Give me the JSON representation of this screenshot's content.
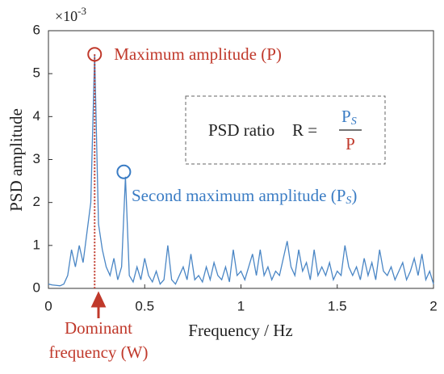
{
  "chart_data": {
    "type": "line",
    "xlabel": "Frequency / Hz",
    "ylabel": "PSD amplitude",
    "multiplier": {
      "base": "×10",
      "exponent": "-3"
    },
    "xlim": [
      0,
      2
    ],
    "xticks": [
      0,
      0.5,
      1,
      1.5,
      2
    ],
    "ylim": [
      0,
      6
    ],
    "yticks": [
      0,
      1,
      2,
      3,
      4,
      5,
      6
    ],
    "grid": false,
    "series": [
      {
        "color": "#4a86c5",
        "x": [
          0,
          0.02,
          0.04,
          0.06,
          0.08,
          0.1,
          0.12,
          0.14,
          0.16,
          0.18,
          0.2,
          0.22,
          0.24,
          0.26,
          0.28,
          0.3,
          0.32,
          0.34,
          0.36,
          0.38,
          0.4,
          0.42,
          0.44,
          0.46,
          0.48,
          0.5,
          0.52,
          0.54,
          0.56,
          0.58,
          0.6,
          0.62,
          0.64,
          0.66,
          0.68,
          0.7,
          0.72,
          0.74,
          0.76,
          0.78,
          0.8,
          0.82,
          0.84,
          0.86,
          0.88,
          0.9,
          0.92,
          0.94,
          0.96,
          0.98,
          1,
          1.02,
          1.04,
          1.06,
          1.08,
          1.1,
          1.12,
          1.14,
          1.16,
          1.18,
          1.2,
          1.22,
          1.24,
          1.26,
          1.28,
          1.3,
          1.32,
          1.34,
          1.36,
          1.38,
          1.4,
          1.42,
          1.44,
          1.46,
          1.48,
          1.5,
          1.52,
          1.54,
          1.56,
          1.58,
          1.6,
          1.62,
          1.64,
          1.66,
          1.68,
          1.7,
          1.72,
          1.74,
          1.76,
          1.78,
          1.8,
          1.82,
          1.84,
          1.86,
          1.88,
          1.9,
          1.92,
          1.94,
          1.96,
          1.98,
          2
        ],
        "values": [
          0.1,
          0.08,
          0.07,
          0.06,
          0.1,
          0.3,
          0.9,
          0.5,
          1.0,
          0.6,
          1.3,
          2.0,
          5.45,
          1.5,
          0.9,
          0.5,
          0.3,
          0.7,
          0.2,
          0.5,
          2.6,
          0.3,
          0.15,
          0.5,
          0.2,
          0.7,
          0.3,
          0.15,
          0.4,
          0.1,
          0.2,
          1.0,
          0.2,
          0.1,
          0.3,
          0.5,
          0.2,
          0.8,
          0.2,
          0.3,
          0.15,
          0.5,
          0.2,
          0.6,
          0.3,
          0.2,
          0.5,
          0.15,
          0.9,
          0.3,
          0.4,
          0.2,
          0.5,
          0.8,
          0.3,
          0.9,
          0.3,
          0.5,
          0.2,
          0.4,
          0.3,
          0.7,
          1.1,
          0.5,
          0.3,
          0.9,
          0.4,
          0.6,
          0.2,
          0.9,
          0.3,
          0.5,
          0.3,
          0.6,
          0.2,
          0.4,
          0.3,
          1.0,
          0.5,
          0.3,
          0.5,
          0.2,
          0.7,
          0.3,
          0.6,
          0.2,
          0.9,
          0.4,
          0.3,
          0.5,
          0.2,
          0.4,
          0.6,
          0.2,
          0.4,
          0.7,
          0.3,
          0.8,
          0.2,
          0.4,
          0.1
        ]
      }
    ],
    "annotations": {
      "maximum": {
        "text": "Maximum amplitude (P)",
        "color": "#c0392b",
        "index": 12
      },
      "second": {
        "text": "Second maximum amplitude (P",
        "sub": "S",
        "end": ")",
        "color": "#3a7cc4",
        "index": 20
      },
      "ratio": {
        "label": "PSD ratio",
        "lhs": "R =",
        "numerator": "P",
        "numerator_sub": "S",
        "denominator": "P"
      },
      "dominant": {
        "lines": [
          "Dominant",
          "frequency (W)"
        ],
        "color": "#c0392b"
      }
    }
  }
}
